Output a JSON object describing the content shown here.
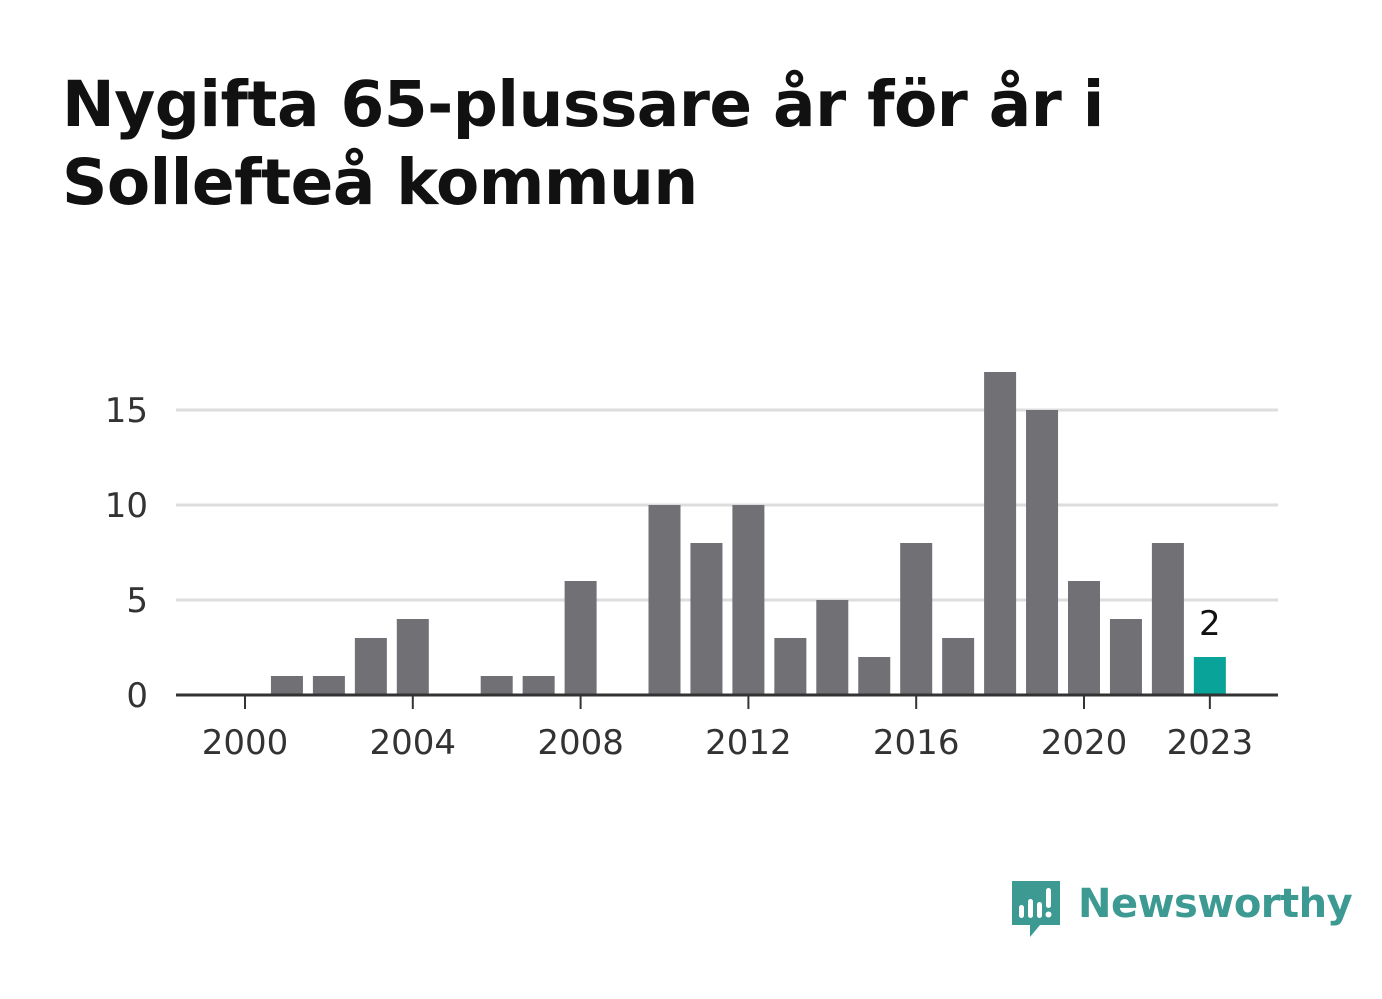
{
  "title": "Nygifta 65-plussare år för år i Sollefteå kommun",
  "brand": {
    "name": "Newsworthy",
    "icon": "newsworthy-logo-icon",
    "color": "#3c9a93"
  },
  "chart_data": {
    "type": "bar",
    "title": "Nygifta 65-plussare år för år i Sollefteå kommun",
    "xlabel": "",
    "ylabel": "",
    "categories": [
      "2000",
      "2001",
      "2002",
      "2003",
      "2004",
      "2005",
      "2006",
      "2007",
      "2008",
      "2009",
      "2010",
      "2011",
      "2012",
      "2013",
      "2014",
      "2015",
      "2016",
      "2017",
      "2018",
      "2019",
      "2020",
      "2021",
      "2022",
      "2023"
    ],
    "values": [
      0,
      1,
      1,
      3,
      4,
      0,
      1,
      1,
      6,
      0,
      10,
      8,
      10,
      3,
      5,
      2,
      8,
      3,
      17,
      15,
      6,
      4,
      8,
      2
    ],
    "x_tick_labels": [
      "2000",
      "2004",
      "2008",
      "2012",
      "2016",
      "2020",
      "2023"
    ],
    "y_ticks": [
      0,
      5,
      10,
      15
    ],
    "ylim": [
      0,
      17
    ],
    "grid": true,
    "highlight": {
      "category": "2023",
      "label": "2",
      "color": "#0aa399"
    },
    "bar_color": "#707075",
    "legend": "none"
  }
}
